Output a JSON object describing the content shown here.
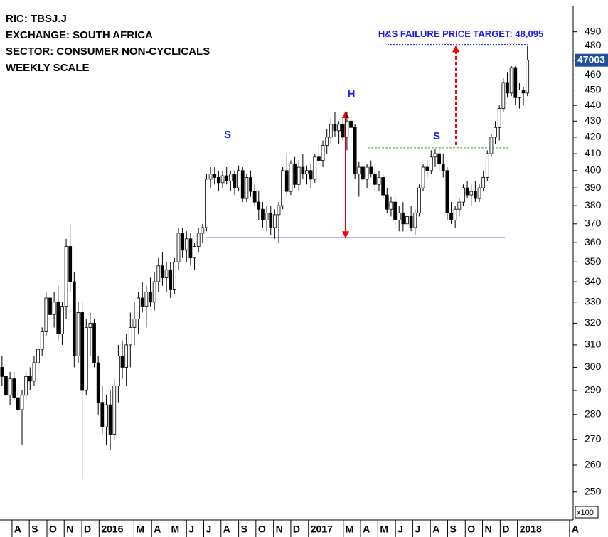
{
  "chart_data": {
    "type": "candlestick",
    "info_lines": [
      "RIC: TBSJ.J",
      "EXCHANGE: SOUTH AFRICA",
      "SECTOR: CONSUMER NON-CYCLICALS",
      "WEEKLY SCALE"
    ],
    "open": [
      300,
      296,
      288,
      295,
      287,
      282,
      288,
      296,
      294,
      302,
      308,
      316,
      332,
      324,
      330,
      315,
      328,
      358,
      340,
      305,
      325,
      290,
      318,
      320,
      302,
      285,
      275,
      284,
      272,
      292,
      305,
      300,
      310,
      318,
      322,
      332,
      328,
      335,
      330,
      340,
      348,
      342,
      346,
      336,
      350,
      365,
      356,
      362,
      352,
      358,
      365,
      368,
      395,
      398,
      396,
      393,
      397,
      394,
      398,
      390,
      400,
      384,
      396,
      388,
      382,
      378,
      372,
      376,
      368,
      375,
      380,
      400,
      388,
      404,
      392,
      402,
      398,
      400,
      395,
      408,
      406,
      415,
      420,
      428,
      424,
      428,
      420,
      430,
      426,
      398,
      402,
      395,
      402,
      398,
      392,
      396,
      386,
      378,
      382,
      372,
      376,
      370,
      374,
      368,
      376,
      390,
      402,
      400,
      408,
      410,
      404,
      400,
      376,
      372,
      378,
      382,
      390,
      386,
      388,
      384,
      390,
      396,
      410,
      420,
      426,
      438,
      455,
      448,
      465,
      445,
      450,
      448
    ],
    "high": [
      305,
      300,
      298,
      298,
      290,
      290,
      298,
      300,
      305,
      310,
      318,
      335,
      340,
      335,
      338,
      330,
      362,
      370,
      345,
      330,
      330,
      322,
      325,
      322,
      305,
      292,
      288,
      290,
      295,
      310,
      312,
      315,
      325,
      330,
      335,
      340,
      338,
      342,
      345,
      352,
      355,
      350,
      350,
      352,
      368,
      368,
      366,
      365,
      360,
      368,
      370,
      398,
      402,
      402,
      400,
      400,
      402,
      400,
      400,
      403,
      402,
      398,
      400,
      392,
      388,
      382,
      380,
      380,
      378,
      382,
      402,
      410,
      406,
      408,
      406,
      410,
      403,
      404,
      410,
      415,
      418,
      425,
      432,
      436,
      430,
      432,
      436,
      434,
      428,
      405,
      406,
      404,
      406,
      402,
      400,
      398,
      390,
      385,
      386,
      380,
      382,
      378,
      380,
      378,
      392,
      404,
      406,
      412,
      413,
      414,
      410,
      402,
      382,
      380,
      384,
      392,
      394,
      392,
      394,
      392,
      400,
      412,
      422,
      430,
      440,
      458,
      462,
      466,
      466,
      455,
      452,
      480
    ],
    "low": [
      292,
      285,
      284,
      286,
      280,
      268,
      286,
      290,
      292,
      298,
      305,
      314,
      320,
      318,
      312,
      310,
      322,
      335,
      300,
      302,
      255,
      288,
      305,
      300,
      280,
      272,
      268,
      266,
      270,
      285,
      295,
      292,
      300,
      310,
      315,
      325,
      318,
      328,
      326,
      335,
      338,
      335,
      332,
      334,
      346,
      352,
      350,
      348,
      346,
      355,
      360,
      366,
      390,
      392,
      388,
      390,
      392,
      388,
      386,
      388,
      382,
      382,
      385,
      380,
      372,
      368,
      366,
      364,
      362,
      360,
      378,
      385,
      386,
      390,
      388,
      395,
      392,
      390,
      393,
      404,
      402,
      410,
      416,
      420,
      416,
      418,
      412,
      420,
      395,
      385,
      392,
      390,
      396,
      388,
      388,
      384,
      376,
      374,
      368,
      366,
      366,
      362,
      366,
      364,
      374,
      388,
      396,
      398,
      402,
      400,
      396,
      372,
      370,
      368,
      374,
      380,
      384,
      380,
      382,
      382,
      388,
      394,
      408,
      416,
      418,
      436,
      445,
      446,
      440,
      438,
      440,
      446
    ],
    "close": [
      296,
      288,
      295,
      287,
      282,
      288,
      296,
      294,
      302,
      308,
      316,
      332,
      324,
      330,
      315,
      328,
      358,
      340,
      305,
      325,
      290,
      318,
      320,
      302,
      285,
      275,
      284,
      272,
      292,
      305,
      300,
      310,
      318,
      322,
      332,
      328,
      335,
      330,
      340,
      348,
      342,
      346,
      336,
      350,
      365,
      356,
      362,
      352,
      358,
      365,
      368,
      395,
      398,
      396,
      393,
      397,
      394,
      398,
      390,
      400,
      384,
      396,
      388,
      382,
      378,
      372,
      376,
      368,
      375,
      380,
      400,
      388,
      404,
      392,
      402,
      398,
      400,
      395,
      408,
      406,
      415,
      420,
      428,
      424,
      428,
      420,
      430,
      426,
      398,
      402,
      395,
      402,
      398,
      392,
      396,
      386,
      378,
      382,
      372,
      376,
      370,
      374,
      368,
      376,
      390,
      402,
      400,
      408,
      410,
      404,
      400,
      376,
      372,
      378,
      382,
      390,
      386,
      388,
      384,
      390,
      396,
      410,
      420,
      426,
      438,
      455,
      448,
      465,
      445,
      450,
      448,
      470.03
    ],
    "last_price": {
      "value": 470.03,
      "label": "47003"
    },
    "log_scale": true,
    "ylim": [
      240,
      508
    ],
    "yticks": [
      250,
      260,
      270,
      280,
      290,
      300,
      310,
      320,
      330,
      340,
      350,
      360,
      370,
      380,
      390,
      400,
      410,
      420,
      430,
      440,
      450,
      460,
      470,
      480,
      490
    ],
    "y_unit_label": "x100",
    "xlim": [
      -0.5,
      142.4
    ],
    "xticks": [
      {
        "value": 2.5,
        "label": "A"
      },
      {
        "value": 6.8,
        "label": "S"
      },
      {
        "value": 11.2,
        "label": "O"
      },
      {
        "value": 15.5,
        "label": "N"
      },
      {
        "value": 19.9,
        "label": "D"
      },
      {
        "value": 24.2,
        "label": "2016"
      },
      {
        "value": 32.9,
        "label": "M"
      },
      {
        "value": 37.3,
        "label": "A"
      },
      {
        "value": 41.6,
        "label": "M"
      },
      {
        "value": 46.0,
        "label": "J"
      },
      {
        "value": 50.3,
        "label": "J"
      },
      {
        "value": 54.6,
        "label": "A"
      },
      {
        "value": 59.0,
        "label": "S"
      },
      {
        "value": 63.3,
        "label": "O"
      },
      {
        "value": 67.7,
        "label": "N"
      },
      {
        "value": 72.0,
        "label": "D"
      },
      {
        "value": 76.4,
        "label": "2017"
      },
      {
        "value": 85.1,
        "label": "M"
      },
      {
        "value": 89.4,
        "label": "A"
      },
      {
        "value": 93.7,
        "label": "M"
      },
      {
        "value": 98.1,
        "label": "J"
      },
      {
        "value": 102.4,
        "label": "J"
      },
      {
        "value": 106.8,
        "label": "A"
      },
      {
        "value": 111.1,
        "label": "S"
      },
      {
        "value": 115.5,
        "label": "O"
      },
      {
        "value": 119.8,
        "label": "N"
      },
      {
        "value": 124.2,
        "label": "D"
      },
      {
        "value": 128.5,
        "label": "2018"
      },
      {
        "value": 141.5,
        "label": "A"
      }
    ],
    "pattern_labels": [
      "S",
      "H",
      "S"
    ],
    "neckline": 362.6,
    "breakout_level": 413.5,
    "head_level": 436,
    "target": {
      "value": 480.95,
      "label": "H&S FAILURE PRICE TARGET: 48,095"
    },
    "up_color": "#ffffff",
    "down_color": "#000000",
    "neckline_color": "#3333cc",
    "breakout_color": "#33aa33",
    "arrow_color": "#ee0000",
    "target_color": "#1a1aee"
  }
}
